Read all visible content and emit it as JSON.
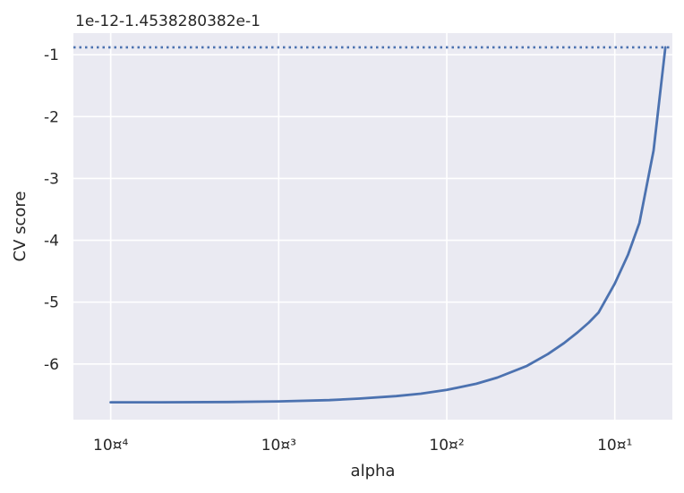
{
  "chart_data": {
    "type": "line",
    "title": "",
    "xlabel": "alpha",
    "ylabel": "CV score",
    "xscale": "log",
    "xlim": [
      6e-05,
      0.22
    ],
    "ylim": [
      -6.9,
      -0.65
    ],
    "y_offset_text": "1e-12-1.4538280382e-1",
    "grid": true,
    "background": "#EAEAF2",
    "line_color": "#4C72B0",
    "x_ticks": [
      {
        "value": 0.0001,
        "label": "10¤⁴"
      },
      {
        "value": 0.001,
        "label": "10¤³"
      },
      {
        "value": 0.01,
        "label": "10¤²"
      },
      {
        "value": 0.1,
        "label": "10¤¹"
      }
    ],
    "y_ticks": [
      {
        "value": -1,
        "label": "-1"
      },
      {
        "value": -2,
        "label": "-2"
      },
      {
        "value": -3,
        "label": "-3"
      },
      {
        "value": -4,
        "label": "-4"
      },
      {
        "value": -5,
        "label": "-5"
      },
      {
        "value": -6,
        "label": "-6"
      }
    ],
    "series": [
      {
        "style": "solid",
        "x": [
          0.0001,
          0.0002,
          0.0005,
          0.001,
          0.002,
          0.003,
          0.005,
          0.007,
          0.01,
          0.015,
          0.02,
          0.03,
          0.04,
          0.05,
          0.06,
          0.07,
          0.08,
          0.1,
          0.12,
          0.14,
          0.17,
          0.2
        ],
        "y": [
          -6.62,
          -6.62,
          -6.615,
          -6.605,
          -6.585,
          -6.56,
          -6.52,
          -6.48,
          -6.42,
          -6.32,
          -6.22,
          -6.03,
          -5.84,
          -5.66,
          -5.49,
          -5.33,
          -5.17,
          -4.7,
          -4.23,
          -3.72,
          -2.55,
          -0.88
        ]
      },
      {
        "style": "dotted",
        "x": [
          6e-05,
          0.22
        ],
        "y": [
          -0.88,
          -0.88
        ]
      }
    ]
  }
}
